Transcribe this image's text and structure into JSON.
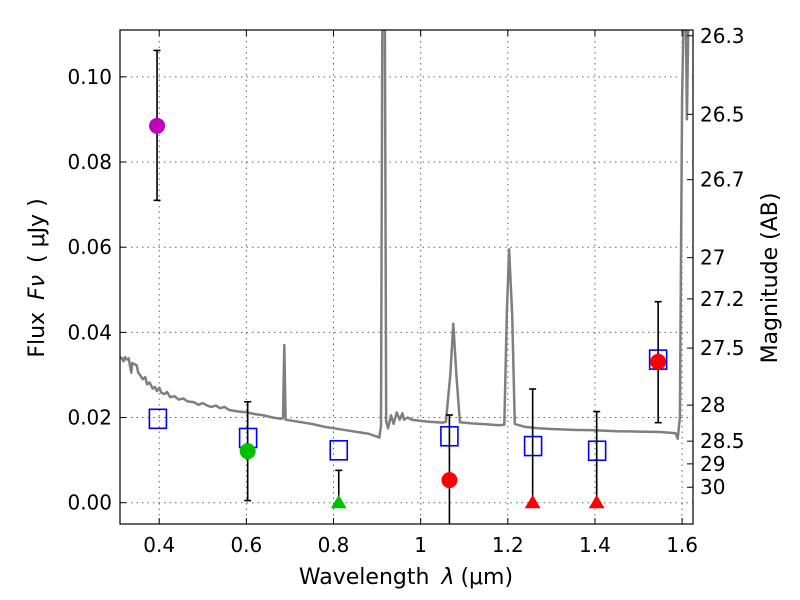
{
  "chart_data": {
    "type": "scatter",
    "xlabel_prefix": "Wavelength",
    "xlabel_symbol": "λ",
    "xlabel_unit": "(μm)",
    "ylabel_prefix": "Flux",
    "ylabel_symbol": "Fν",
    "ylabel_unit": "( μJy )",
    "y2label": "Magnitude (AB)",
    "xlim": [
      0.31,
      1.625
    ],
    "ylim": [
      -0.005,
      0.111
    ],
    "x_ticks": [
      0.4,
      0.6,
      0.8,
      1.0,
      1.2,
      1.4,
      1.6
    ],
    "x_tick_labels": [
      "0.4",
      "0.6",
      "0.8",
      "1",
      "1.2",
      "1.4",
      "1.6"
    ],
    "y_ticks": [
      0.0,
      0.02,
      0.04,
      0.06,
      0.08,
      0.1
    ],
    "y_tick_labels": [
      "0.00",
      "0.02",
      "0.04",
      "0.06",
      "0.08",
      "0.10"
    ],
    "mag_ticks": [
      26.3,
      26.5,
      26.7,
      27,
      27.2,
      27.5,
      28,
      28.5,
      29,
      30
    ],
    "mag_tick_labels": [
      "26.3",
      "26.5",
      "26.7",
      "27",
      "27.2",
      "27.5",
      "28",
      "28.5",
      "29",
      "30"
    ],
    "grid": true,
    "observed_points": [
      {
        "x": 0.395,
        "y": 0.0885,
        "err_lo": 0.071,
        "err_hi": 0.1062,
        "marker": "circle",
        "color": "#bf00bf"
      },
      {
        "x": 0.603,
        "y": 0.0121,
        "err_lo": 0.0005,
        "err_hi": 0.0237,
        "marker": "circle",
        "color": "#00c000"
      },
      {
        "x": 0.812,
        "y": 0.0,
        "err_lo": 0.0,
        "err_hi": 0.0076,
        "marker": "triangle",
        "color": "#00c000"
      },
      {
        "x": 1.066,
        "y": 0.0053,
        "err_lo": -0.0055,
        "err_hi": 0.0206,
        "marker": "circle",
        "color": "#ff0000"
      },
      {
        "x": 1.257,
        "y": 0.0,
        "err_lo": 0.0,
        "err_hi": 0.0267,
        "marker": "triangle",
        "color": "#ff0000"
      },
      {
        "x": 1.404,
        "y": 0.0,
        "err_lo": 0.0,
        "err_hi": 0.0214,
        "marker": "triangle",
        "color": "#ff0000"
      },
      {
        "x": 1.545,
        "y": 0.0331,
        "err_lo": 0.0188,
        "err_hi": 0.0472,
        "marker": "circle",
        "color": "#ff0000"
      }
    ],
    "model_points": [
      {
        "x": 0.397,
        "y": 0.0197
      },
      {
        "x": 0.604,
        "y": 0.0152
      },
      {
        "x": 0.812,
        "y": 0.0123
      },
      {
        "x": 1.066,
        "y": 0.0156
      },
      {
        "x": 1.258,
        "y": 0.0133
      },
      {
        "x": 1.405,
        "y": 0.0122
      },
      {
        "x": 1.545,
        "y": 0.0336
      }
    ],
    "sed_curve": [
      [
        0.31,
        0.0342
      ],
      [
        0.315,
        0.0338
      ],
      [
        0.318,
        0.0332
      ],
      [
        0.321,
        0.0342
      ],
      [
        0.325,
        0.0336
      ],
      [
        0.33,
        0.0339
      ],
      [
        0.334,
        0.0315
      ],
      [
        0.336,
        0.0305
      ],
      [
        0.338,
        0.0328
      ],
      [
        0.342,
        0.0326
      ],
      [
        0.348,
        0.0323
      ],
      [
        0.352,
        0.0305
      ],
      [
        0.356,
        0.03
      ],
      [
        0.362,
        0.029
      ],
      [
        0.368,
        0.0295
      ],
      [
        0.372,
        0.0278
      ],
      [
        0.378,
        0.0282
      ],
      [
        0.385,
        0.0268
      ],
      [
        0.39,
        0.0272
      ],
      [
        0.395,
        0.0262
      ],
      [
        0.4,
        0.027
      ],
      [
        0.405,
        0.0258
      ],
      [
        0.412,
        0.0255
      ],
      [
        0.418,
        0.026
      ],
      [
        0.425,
        0.0248
      ],
      [
        0.435,
        0.025
      ],
      [
        0.445,
        0.0242
      ],
      [
        0.455,
        0.0245
      ],
      [
        0.465,
        0.0238
      ],
      [
        0.48,
        0.0236
      ],
      [
        0.49,
        0.023
      ],
      [
        0.5,
        0.0234
      ],
      [
        0.51,
        0.0228
      ],
      [
        0.52,
        0.0225
      ],
      [
        0.53,
        0.0228
      ],
      [
        0.54,
        0.0222
      ],
      [
        0.55,
        0.0225
      ],
      [
        0.56,
        0.0218
      ],
      [
        0.575,
        0.0215
      ],
      [
        0.6,
        0.0212
      ],
      [
        0.62,
        0.0208
      ],
      [
        0.64,
        0.0205
      ],
      [
        0.66,
        0.02
      ],
      [
        0.68,
        0.0197
      ],
      [
        0.684,
        0.0198
      ],
      [
        0.687,
        0.037
      ],
      [
        0.69,
        0.0195
      ],
      [
        0.72,
        0.019
      ],
      [
        0.75,
        0.0185
      ],
      [
        0.78,
        0.0178
      ],
      [
        0.8,
        0.0175
      ],
      [
        0.83,
        0.017
      ],
      [
        0.86,
        0.0165
      ],
      [
        0.88,
        0.0162
      ],
      [
        0.9,
        0.0155
      ],
      [
        0.905,
        0.0153
      ],
      [
        0.909,
        0.018
      ],
      [
        0.912,
        0.111
      ],
      [
        0.918,
        0.111
      ],
      [
        0.921,
        0.019
      ],
      [
        0.925,
        0.0175
      ],
      [
        0.932,
        0.0205
      ],
      [
        0.938,
        0.0185
      ],
      [
        0.945,
        0.0212
      ],
      [
        0.952,
        0.0195
      ],
      [
        0.958,
        0.021
      ],
      [
        0.962,
        0.0195
      ],
      [
        0.97,
        0.02
      ],
      [
        0.98,
        0.0195
      ],
      [
        1.0,
        0.0192
      ],
      [
        1.02,
        0.019
      ],
      [
        1.05,
        0.0188
      ],
      [
        1.058,
        0.019
      ],
      [
        1.068,
        0.03
      ],
      [
        1.075,
        0.042
      ],
      [
        1.082,
        0.03
      ],
      [
        1.09,
        0.0189
      ],
      [
        1.12,
        0.0186
      ],
      [
        1.15,
        0.0184
      ],
      [
        1.18,
        0.0182
      ],
      [
        1.192,
        0.0183
      ],
      [
        1.198,
        0.045
      ],
      [
        1.203,
        0.0595
      ],
      [
        1.21,
        0.044
      ],
      [
        1.216,
        0.0185
      ],
      [
        1.24,
        0.0178
      ],
      [
        1.27,
        0.0175
      ],
      [
        1.3,
        0.0173
      ],
      [
        1.35,
        0.0171
      ],
      [
        1.4,
        0.017
      ],
      [
        1.45,
        0.0168
      ],
      [
        1.5,
        0.0167
      ],
      [
        1.55,
        0.0166
      ],
      [
        1.585,
        0.0163
      ],
      [
        1.59,
        0.015
      ],
      [
        1.595,
        0.02
      ],
      [
        1.6,
        0.095
      ],
      [
        1.603,
        0.111
      ],
      [
        1.609,
        0.111
      ],
      [
        1.611,
        0.09
      ],
      [
        1.614,
        0.111
      ]
    ]
  }
}
